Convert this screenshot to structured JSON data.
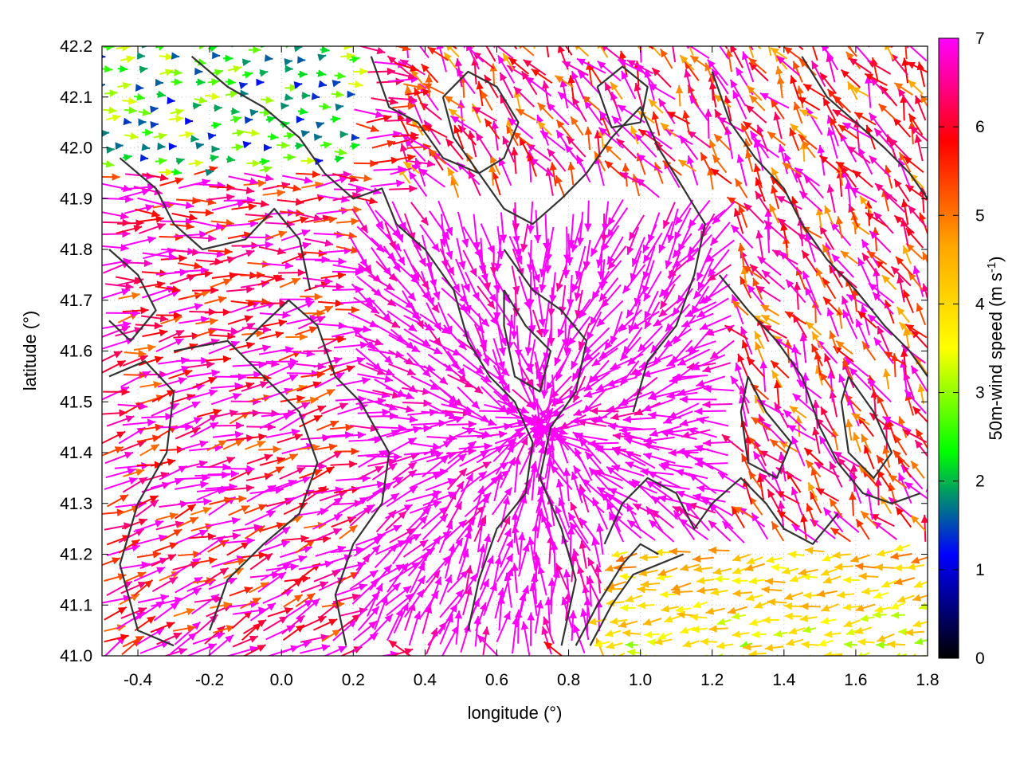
{
  "chart_data": {
    "type": "vector-field",
    "title": "",
    "xlabel": "longitude (°)",
    "ylabel": "latitude (°)",
    "xlim": [
      -0.5,
      1.8
    ],
    "ylim": [
      41.0,
      42.2
    ],
    "x_ticks": [
      "-0.4",
      "-0.2",
      "0.0",
      "0.2",
      "0.4",
      "0.6",
      "0.8",
      "1.0",
      "1.2",
      "1.4",
      "1.6",
      "1.8"
    ],
    "x_tick_values": [
      -0.4,
      -0.2,
      0.0,
      0.2,
      0.4,
      0.6,
      0.8,
      1.0,
      1.2,
      1.4,
      1.6,
      1.8
    ],
    "y_ticks": [
      "41.0",
      "41.1",
      "41.2",
      "41.3",
      "41.4",
      "41.5",
      "41.6",
      "41.7",
      "41.8",
      "41.9",
      "42.0",
      "42.1",
      "42.2"
    ],
    "y_tick_values": [
      41.0,
      41.1,
      41.2,
      41.3,
      41.4,
      41.5,
      41.6,
      41.7,
      41.8,
      41.9,
      42.0,
      42.1,
      42.2
    ],
    "grid": true,
    "colorbar": {
      "label_main": "50m-wind speed (m s",
      "label_sup": "-1",
      "label_end": ")",
      "range": [
        0,
        7
      ],
      "ticks": [
        "0",
        "1",
        "2",
        "3",
        "4",
        "5",
        "6",
        "7"
      ],
      "tick_values": [
        0,
        1,
        2,
        3,
        4,
        5,
        6,
        7
      ],
      "colors": [
        "#000000",
        "#0000ff",
        "#00ff00",
        "#ffff00",
        "#ffa500",
        "#ff0000",
        "#ff00ff"
      ]
    },
    "contours": [
      [
        [
          -0.48,
          41.55
        ],
        [
          -0.38,
          41.58
        ],
        [
          -0.3,
          41.52
        ],
        [
          -0.32,
          41.4
        ],
        [
          -0.4,
          41.3
        ],
        [
          -0.45,
          41.18
        ],
        [
          -0.4,
          41.05
        ],
        [
          -0.3,
          41.02
        ]
      ],
      [
        [
          -0.3,
          41.6
        ],
        [
          -0.15,
          41.62
        ],
        [
          -0.05,
          41.55
        ],
        [
          0.05,
          41.48
        ],
        [
          0.1,
          41.38
        ],
        [
          0.05,
          41.28
        ],
        [
          -0.05,
          41.22
        ],
        [
          -0.15,
          41.15
        ],
        [
          -0.2,
          41.05
        ]
      ],
      [
        [
          -0.1,
          41.62
        ],
        [
          0.02,
          41.7
        ],
        [
          0.1,
          41.65
        ],
        [
          0.15,
          41.55
        ],
        [
          0.22,
          41.5
        ],
        [
          0.3,
          41.4
        ],
        [
          0.28,
          41.3
        ],
        [
          0.2,
          41.22
        ],
        [
          0.15,
          41.12
        ],
        [
          0.18,
          41.02
        ]
      ],
      [
        [
          -0.45,
          41.98
        ],
        [
          -0.35,
          41.92
        ],
        [
          -0.3,
          41.85
        ],
        [
          -0.22,
          41.8
        ],
        [
          -0.1,
          41.82
        ],
        [
          -0.02,
          41.88
        ],
        [
          0.05,
          41.82
        ],
        [
          0.08,
          41.72
        ]
      ],
      [
        [
          -0.25,
          42.18
        ],
        [
          -0.15,
          42.12
        ],
        [
          -0.05,
          42.08
        ],
        [
          0.05,
          42.02
        ],
        [
          0.12,
          41.95
        ],
        [
          0.2,
          41.9
        ],
        [
          0.28,
          41.92
        ],
        [
          0.32,
          41.85
        ],
        [
          0.4,
          41.8
        ]
      ],
      [
        [
          0.25,
          42.18
        ],
        [
          0.3,
          42.08
        ],
        [
          0.38,
          42.05
        ],
        [
          0.45,
          41.98
        ],
        [
          0.55,
          41.95
        ],
        [
          0.62,
          41.88
        ],
        [
          0.7,
          41.85
        ],
        [
          0.78,
          41.9
        ],
        [
          0.85,
          41.95
        ]
      ],
      [
        [
          0.4,
          41.8
        ],
        [
          0.48,
          41.72
        ],
        [
          0.52,
          41.62
        ],
        [
          0.58,
          41.55
        ],
        [
          0.65,
          41.5
        ],
        [
          0.7,
          41.42
        ],
        [
          0.68,
          41.32
        ],
        [
          0.6,
          41.25
        ],
        [
          0.55,
          41.15
        ],
        [
          0.52,
          41.05
        ]
      ],
      [
        [
          0.62,
          41.8
        ],
        [
          0.7,
          41.72
        ],
        [
          0.78,
          41.68
        ],
        [
          0.85,
          41.62
        ],
        [
          0.82,
          41.52
        ],
        [
          0.75,
          41.45
        ],
        [
          0.72,
          41.35
        ],
        [
          0.78,
          41.25
        ],
        [
          0.82,
          41.15
        ],
        [
          0.78,
          41.02
        ]
      ],
      [
        [
          0.85,
          41.95
        ],
        [
          0.92,
          42.02
        ],
        [
          1.0,
          42.08
        ],
        [
          1.05,
          42.0
        ],
        [
          1.12,
          41.92
        ],
        [
          1.18,
          41.85
        ],
        [
          1.15,
          41.75
        ],
        [
          1.1,
          41.65
        ],
        [
          1.02,
          41.58
        ],
        [
          0.98,
          41.48
        ]
      ],
      [
        [
          0.9,
          41.22
        ],
        [
          0.95,
          41.3
        ],
        [
          1.02,
          41.35
        ],
        [
          1.1,
          41.32
        ],
        [
          1.15,
          41.25
        ],
        [
          1.2,
          41.3
        ],
        [
          1.28,
          41.35
        ],
        [
          1.35,
          41.3
        ],
        [
          1.4,
          41.25
        ],
        [
          1.48,
          41.22
        ],
        [
          1.55,
          41.28
        ]
      ],
      [
        [
          0.82,
          41.02
        ],
        [
          0.88,
          41.1
        ],
        [
          0.95,
          41.18
        ],
        [
          1.0,
          41.22
        ],
        [
          1.05,
          41.2
        ]
      ],
      [
        [
          0.86,
          41.02
        ],
        [
          0.92,
          41.1
        ],
        [
          0.98,
          41.16
        ],
        [
          1.05,
          41.18
        ],
        [
          1.12,
          41.2
        ]
      ],
      [
        [
          1.2,
          42.15
        ],
        [
          1.25,
          42.05
        ],
        [
          1.32,
          41.98
        ],
        [
          1.4,
          41.92
        ],
        [
          1.45,
          41.85
        ],
        [
          1.52,
          41.78
        ],
        [
          1.6,
          41.72
        ],
        [
          1.68,
          41.65
        ],
        [
          1.75,
          41.6
        ],
        [
          1.8,
          41.55
        ]
      ],
      [
        [
          1.22,
          41.75
        ],
        [
          1.3,
          41.68
        ],
        [
          1.38,
          41.62
        ],
        [
          1.45,
          41.55
        ],
        [
          1.5,
          41.45
        ],
        [
          1.55,
          41.38
        ],
        [
          1.62,
          41.32
        ],
        [
          1.7,
          41.3
        ],
        [
          1.78,
          41.32
        ]
      ],
      [
        [
          1.45,
          42.18
        ],
        [
          1.52,
          42.1
        ],
        [
          1.6,
          42.05
        ],
        [
          1.68,
          42.0
        ],
        [
          1.75,
          41.95
        ],
        [
          1.8,
          41.9
        ]
      ],
      [
        [
          0.45,
          42.1
        ],
        [
          0.52,
          42.15
        ],
        [
          0.6,
          42.12
        ],
        [
          0.66,
          42.05
        ],
        [
          0.62,
          41.98
        ],
        [
          0.55,
          41.95
        ],
        [
          0.48,
          42.02
        ],
        [
          0.45,
          42.1
        ]
      ],
      [
        [
          0.88,
          42.12
        ],
        [
          0.95,
          42.16
        ],
        [
          1.02,
          42.12
        ],
        [
          1.0,
          42.05
        ],
        [
          0.92,
          42.04
        ],
        [
          0.88,
          42.12
        ]
      ],
      [
        [
          0.62,
          41.72
        ],
        [
          0.68,
          41.65
        ],
        [
          0.75,
          41.6
        ],
        [
          0.72,
          41.52
        ],
        [
          0.65,
          41.55
        ],
        [
          0.62,
          41.65
        ],
        [
          0.62,
          41.72
        ]
      ],
      [
        [
          -0.48,
          41.8
        ],
        [
          -0.4,
          41.75
        ],
        [
          -0.35,
          41.68
        ],
        [
          -0.42,
          41.62
        ],
        [
          -0.48,
          41.66
        ]
      ],
      [
        [
          1.3,
          41.55
        ],
        [
          1.35,
          41.48
        ],
        [
          1.42,
          41.42
        ],
        [
          1.38,
          41.35
        ],
        [
          1.3,
          41.38
        ],
        [
          1.28,
          41.48
        ],
        [
          1.3,
          41.55
        ]
      ],
      [
        [
          1.58,
          41.55
        ],
        [
          1.65,
          41.48
        ],
        [
          1.7,
          41.4
        ],
        [
          1.65,
          41.35
        ],
        [
          1.58,
          41.4
        ],
        [
          1.56,
          41.5
        ],
        [
          1.58,
          41.55
        ]
      ]
    ]
  }
}
